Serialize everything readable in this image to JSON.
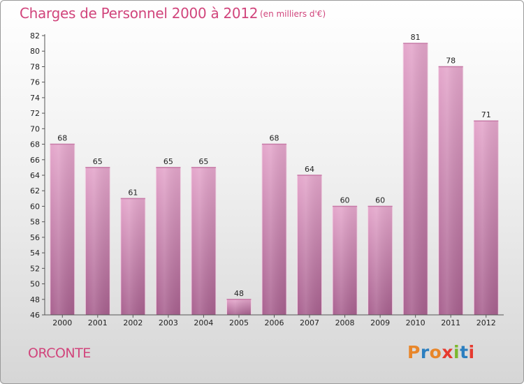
{
  "header": {
    "title": "Charges de Personnel 2000 à 2012",
    "subtitle": "(en milliers d'€)"
  },
  "footer": {
    "commune": "ORCONTE",
    "logo": "Proxiti"
  },
  "colors": {
    "title": "#d1457c",
    "bar_top": "#e4a6cb",
    "bar_bottom": "#a8618f",
    "logo_letters": [
      "#e8862a",
      "#2c7fc0",
      "#e8862a",
      "#e63a2f",
      "#7cb82f",
      "#2c7fc0",
      "#e63a2f"
    ]
  },
  "chart_data": {
    "type": "bar",
    "categories": [
      "2000",
      "2001",
      "2002",
      "2003",
      "2004",
      "2005",
      "2006",
      "2007",
      "2008",
      "2009",
      "2010",
      "2011",
      "2012"
    ],
    "values": [
      68,
      65,
      61,
      65,
      65,
      48,
      68,
      64,
      60,
      60,
      81,
      78,
      71
    ],
    "title": "Charges de Personnel 2000 à 2012",
    "ylim": [
      46,
      82
    ],
    "yticks": [
      46,
      48,
      50,
      52,
      54,
      56,
      58,
      60,
      62,
      64,
      66,
      68,
      70,
      72,
      74,
      76,
      78,
      80,
      82
    ],
    "data_labels": true,
    "grid": false,
    "legend": "none"
  }
}
